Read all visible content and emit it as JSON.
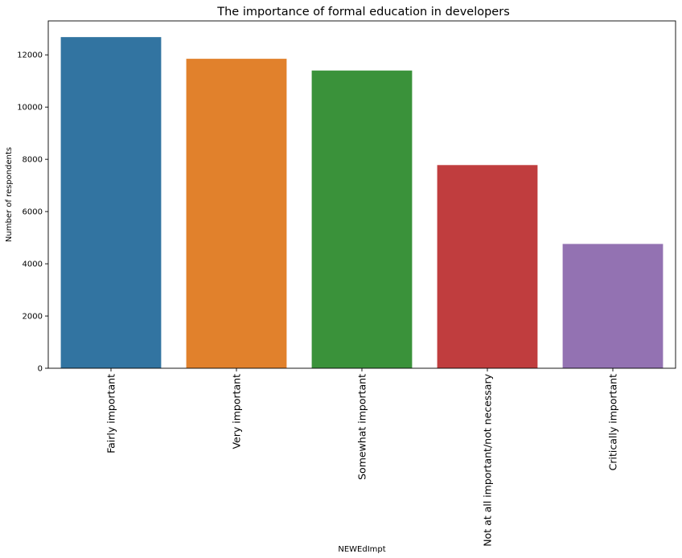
{
  "chart_data": {
    "type": "bar",
    "title": "The importance of formal education in developers",
    "xlabel": "NEWEdImpt",
    "ylabel": "Number of respondents",
    "categories": [
      "Fairly important",
      "Very important",
      "Somewhat important",
      "Not at all important/not necessary",
      "Critically important"
    ],
    "values": [
      12680,
      11850,
      11400,
      7780,
      4760
    ],
    "colors": [
      "#3274a1",
      "#e1812c",
      "#3a923a",
      "#c03d3e",
      "#9372b2"
    ],
    "ylim": [
      0,
      13300
    ],
    "yticks": [
      0,
      2000,
      4000,
      6000,
      8000,
      10000,
      12000
    ],
    "grid": false,
    "legend": "none"
  }
}
